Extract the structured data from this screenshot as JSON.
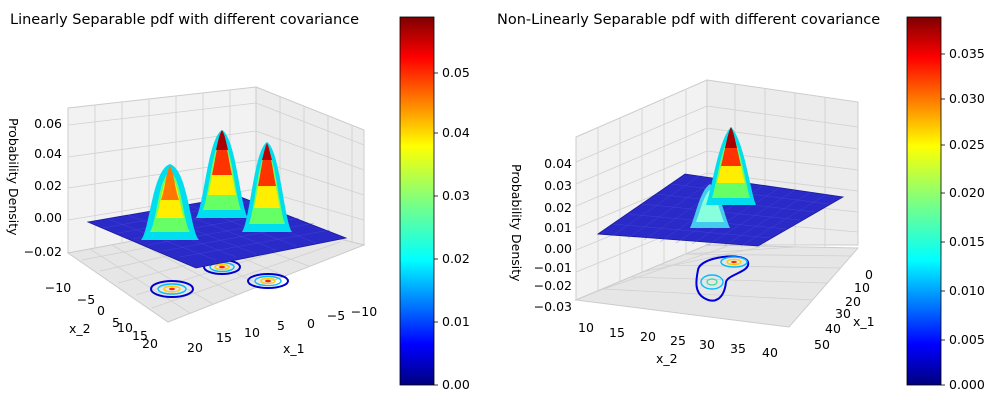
{
  "chart_data": [
    {
      "type": "surface3d",
      "title": "Linearly Separable pdf with different covariance",
      "xlabel": "x_1",
      "ylabel": "x_2",
      "zlabel": "Probability Density",
      "x_ticks": [
        "20",
        "15",
        "10",
        "5",
        "0",
        "−5",
        "−10"
      ],
      "y_ticks": [
        "−10",
        "−5",
        "0",
        "5",
        "10",
        "15",
        "20"
      ],
      "z_ticks": [
        "−0.02",
        "0.00",
        "0.02",
        "0.04",
        "0.06"
      ],
      "xlim": [
        -12,
        22
      ],
      "ylim": [
        -12,
        22
      ],
      "zlim": [
        -0.025,
        0.065
      ],
      "peaks": [
        {
          "x1": 0,
          "x2": 0,
          "height": 0.046
        },
        {
          "x1": 10,
          "x2": 10,
          "height": 0.058
        },
        {
          "x1": 5,
          "x2": 15,
          "height": 0.052
        }
      ],
      "colormap": "jet",
      "colorbar": {
        "min": 0.0,
        "max": 0.058,
        "ticks": [
          "0.00",
          "0.01",
          "0.02",
          "0.03",
          "0.04",
          "0.05"
        ]
      }
    },
    {
      "type": "surface3d",
      "title": "Non-Linearly Separable pdf with different covariance",
      "xlabel": "x_1",
      "ylabel": "x_2",
      "zlabel": "Probability Density",
      "x_ticks": [
        "0",
        "10",
        "20",
        "30",
        "40",
        "50"
      ],
      "y_ticks": [
        "10",
        "15",
        "20",
        "25",
        "30",
        "35",
        "40"
      ],
      "z_ticks": [
        "−0.03",
        "−0.02",
        "−0.01",
        "0.00",
        "0.01",
        "0.02",
        "0.03",
        "0.04"
      ],
      "xlim": [
        -5,
        55
      ],
      "ylim": [
        8,
        42
      ],
      "zlim": [
        -0.03,
        0.045
      ],
      "peaks": [
        {
          "x1": 25,
          "x2": 30,
          "height": 0.038
        },
        {
          "x1": 20,
          "x2": 25,
          "height": 0.013
        }
      ],
      "colormap": "jet",
      "colorbar": {
        "min": 0.0,
        "max": 0.038,
        "ticks": [
          "0.000",
          "0.005",
          "0.010",
          "0.015",
          "0.020",
          "0.025",
          "0.030",
          "0.035"
        ]
      }
    }
  ]
}
